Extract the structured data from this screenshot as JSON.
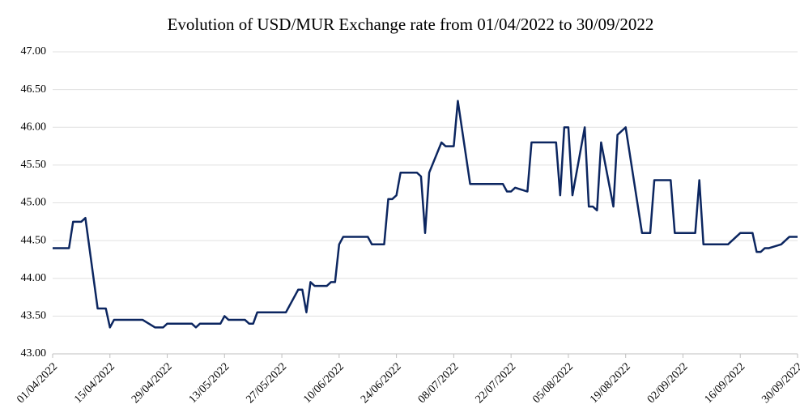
{
  "chart_data": {
    "type": "line",
    "title": "Evolution of USD/MUR Exchange rate from 01/04/2022 to 30/09/2022",
    "x": [
      "01/04/2022",
      "05/04/2022",
      "06/04/2022",
      "08/04/2022",
      "09/04/2022",
      "12/04/2022",
      "14/04/2022",
      "15/04/2022",
      "16/04/2022",
      "23/04/2022",
      "26/04/2022",
      "28/04/2022",
      "29/04/2022",
      "05/05/2022",
      "06/05/2022",
      "07/05/2022",
      "12/05/2022",
      "13/05/2022",
      "14/05/2022",
      "18/05/2022",
      "19/05/2022",
      "20/05/2022",
      "21/05/2022",
      "28/05/2022",
      "31/05/2022",
      "01/06/2022",
      "02/06/2022",
      "03/06/2022",
      "04/06/2022",
      "07/06/2022",
      "08/06/2022",
      "09/06/2022",
      "10/06/2022",
      "11/06/2022",
      "17/06/2022",
      "18/06/2022",
      "21/06/2022",
      "22/06/2022",
      "23/06/2022",
      "24/06/2022",
      "25/06/2022",
      "29/06/2022",
      "30/06/2022",
      "01/07/2022",
      "02/07/2022",
      "05/07/2022",
      "06/07/2022",
      "08/07/2022",
      "09/07/2022",
      "12/07/2022",
      "20/07/2022",
      "21/07/2022",
      "22/07/2022",
      "23/07/2022",
      "26/07/2022",
      "27/07/2022",
      "02/08/2022",
      "03/08/2022",
      "04/08/2022",
      "05/08/2022",
      "06/08/2022",
      "09/08/2022",
      "10/08/2022",
      "11/08/2022",
      "12/08/2022",
      "13/08/2022",
      "16/08/2022",
      "17/08/2022",
      "19/08/2022",
      "23/08/2022",
      "25/08/2022",
      "26/08/2022",
      "30/08/2022",
      "31/08/2022",
      "05/09/2022",
      "06/09/2022",
      "07/09/2022",
      "13/09/2022",
      "16/09/2022",
      "19/09/2022",
      "20/09/2022",
      "21/09/2022",
      "22/09/2022",
      "23/09/2022",
      "26/09/2022",
      "28/09/2022",
      "30/09/2022"
    ],
    "series": [
      {
        "color": "#0c2660",
        "values": [
          44.4,
          44.4,
          44.75,
          44.75,
          44.8,
          43.6,
          43.6,
          43.35,
          43.45,
          43.45,
          43.35,
          43.35,
          43.4,
          43.4,
          43.35,
          43.4,
          43.4,
          43.5,
          43.45,
          43.45,
          43.4,
          43.4,
          43.55,
          43.55,
          43.85,
          43.85,
          43.55,
          43.95,
          43.9,
          43.9,
          43.95,
          43.95,
          44.45,
          44.55,
          44.55,
          44.45,
          44.45,
          45.05,
          45.05,
          45.1,
          45.4,
          45.4,
          45.35,
          44.6,
          45.4,
          45.8,
          45.75,
          45.75,
          46.35,
          45.25,
          45.25,
          45.15,
          45.15,
          45.2,
          45.15,
          45.8,
          45.8,
          45.1,
          46.0,
          46.0,
          45.1,
          46.0,
          44.95,
          44.95,
          44.9,
          45.8,
          44.95,
          45.9,
          46.0,
          44.6,
          44.6,
          45.3,
          45.3,
          44.6,
          44.6,
          45.3,
          44.45,
          44.45,
          44.6,
          44.6,
          44.35,
          44.35,
          44.4,
          44.4,
          44.45,
          44.55,
          44.55
        ]
      }
    ],
    "xlim": [
      "01/04/2022",
      "30/09/2022"
    ],
    "xticks": [
      "01/04/2022",
      "15/04/2022",
      "29/04/2022",
      "13/05/2022",
      "27/05/2022",
      "10/06/2022",
      "24/06/2022",
      "08/07/2022",
      "22/07/2022",
      "05/08/2022",
      "19/08/2022",
      "02/09/2022",
      "16/09/2022",
      "30/09/2022"
    ],
    "ylim": [
      43,
      47
    ],
    "yticks": [
      {
        "value": 43,
        "label": "43.00"
      },
      {
        "value": 43.5,
        "label": "43.50"
      },
      {
        "value": 44,
        "label": "44.00"
      },
      {
        "value": 44.5,
        "label": "44.50"
      },
      {
        "value": 45,
        "label": "45.00"
      },
      {
        "value": 45.5,
        "label": "45.50"
      },
      {
        "value": 46,
        "label": "46.00"
      },
      {
        "value": 46.5,
        "label": "46.50"
      },
      {
        "value": 47,
        "label": "47.00"
      }
    ],
    "grid": true
  }
}
